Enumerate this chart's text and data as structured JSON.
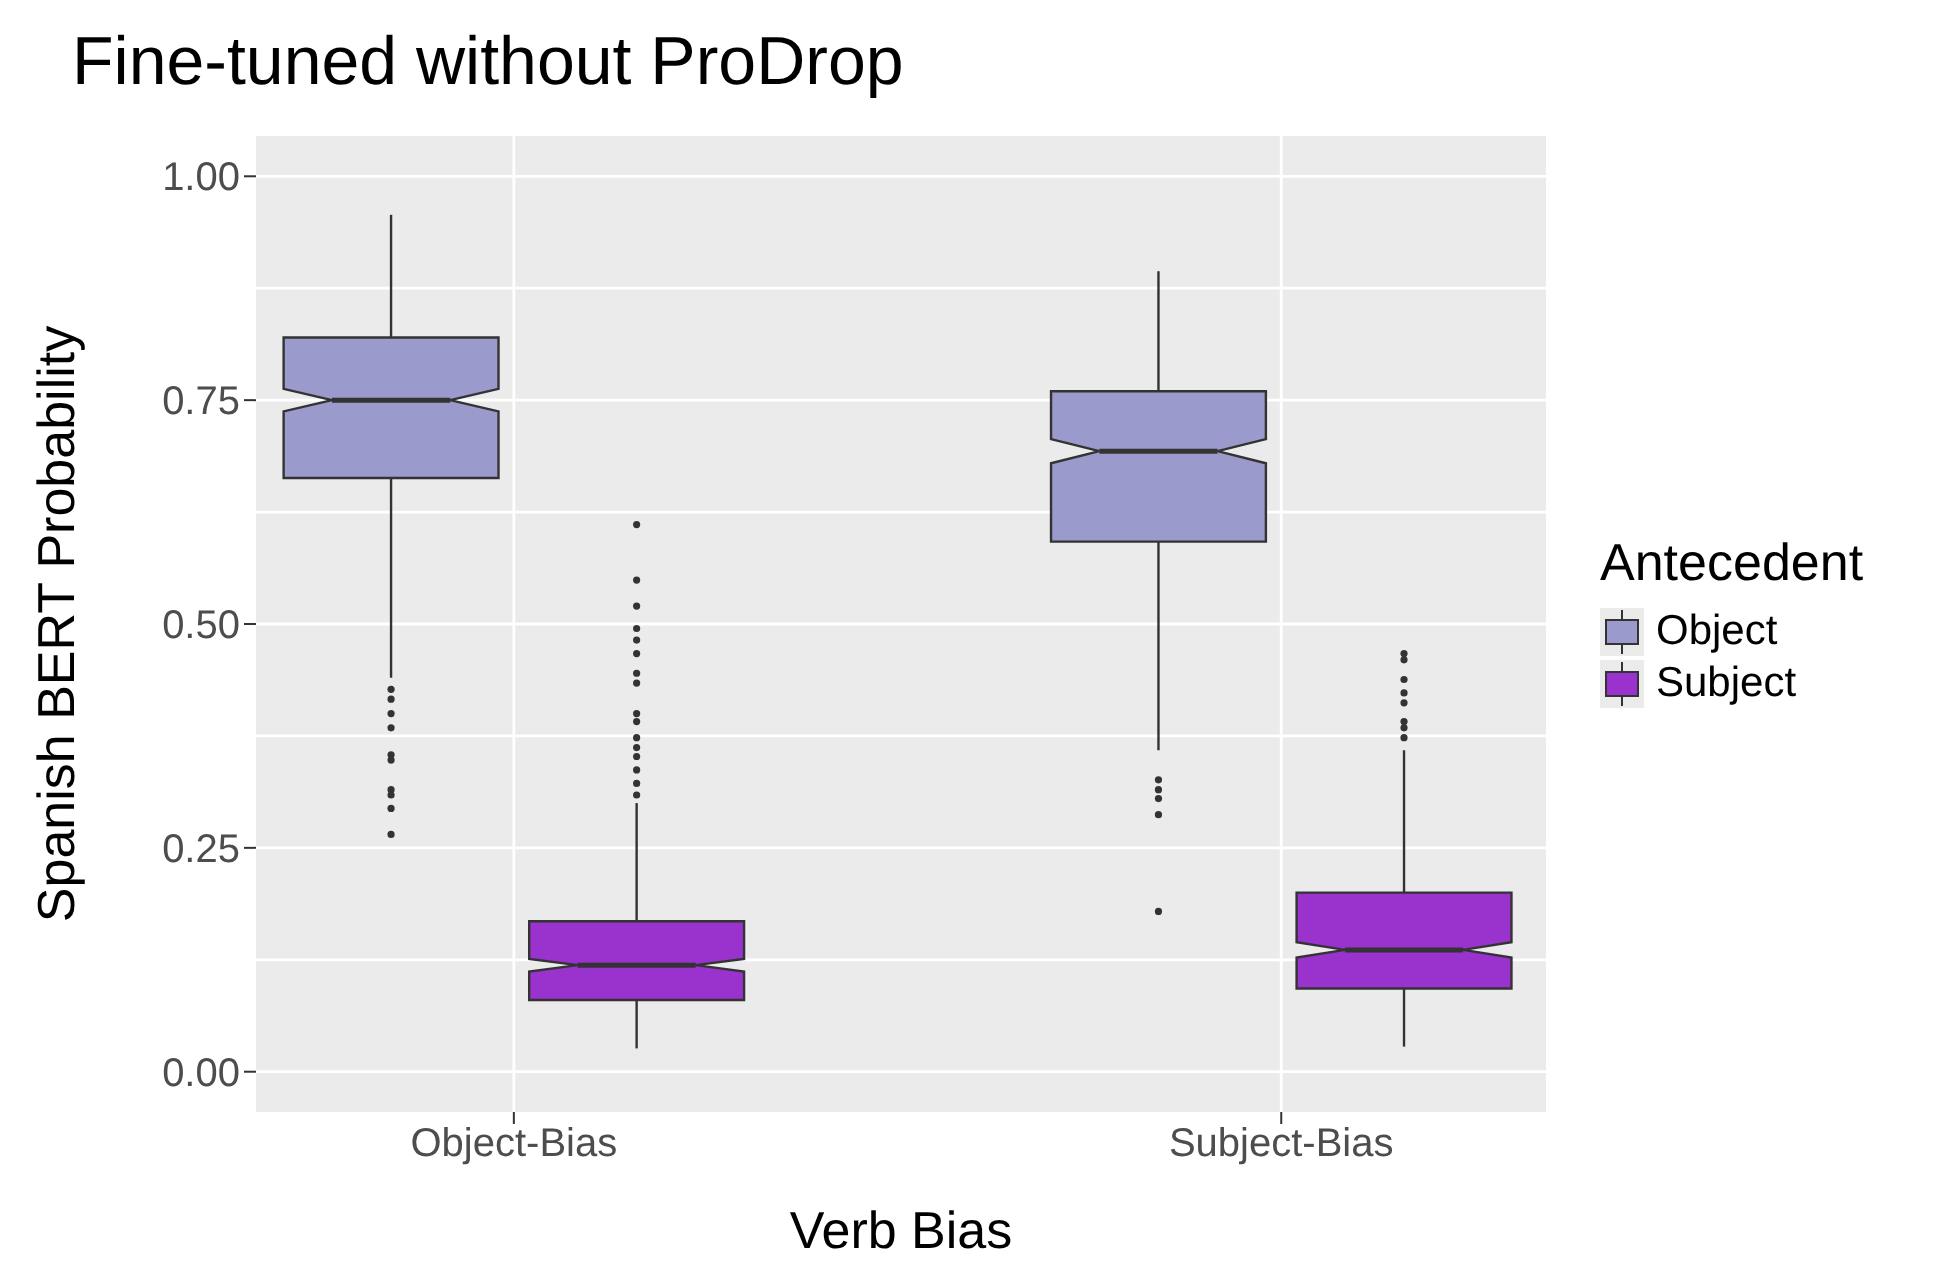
{
  "chart_data": {
    "type": "box",
    "title": "Fine-tuned without ProDrop",
    "xlabel": "Verb Bias",
    "ylabel": "Spanish BERT Probability",
    "legend_title": "Antecedent",
    "legend": "right",
    "grid": true,
    "categories": [
      "Object-Bias",
      "Subject-Bias"
    ],
    "ylim": [
      -0.045,
      1.045
    ],
    "yticks": [
      {
        "value": 0,
        "label": "0.00"
      },
      {
        "value": 0.25,
        "label": "0.25"
      },
      {
        "value": 0.5,
        "label": "0.50"
      },
      {
        "value": 0.75,
        "label": "0.75"
      },
      {
        "value": 1,
        "label": "1.00"
      }
    ],
    "series": [
      {
        "name": "Object",
        "color": "#9a9acd",
        "boxes": [
          {
            "low": 0.44,
            "q1": 0.663,
            "median": 0.75,
            "q3": 0.82,
            "high": 0.957,
            "outliers": [
              0.427,
              0.416,
              0.4,
              0.384,
              0.354,
              0.348,
              0.315,
              0.309,
              0.294,
              0.265
            ]
          },
          {
            "low": 0.359,
            "q1": 0.592,
            "median": 0.693,
            "q3": 0.76,
            "high": 0.894,
            "outliers": [
              0.326,
              0.315,
              0.305,
              0.287,
              0.179
            ]
          }
        ]
      },
      {
        "name": "Subject",
        "color": "#9a32cd",
        "boxes": [
          {
            "low": 0.026,
            "q1": 0.08,
            "median": 0.119,
            "q3": 0.168,
            "high": 0.3,
            "outliers": [
              0.611,
              0.549,
              0.52,
              0.495,
              0.482,
              0.467,
              0.445,
              0.434,
              0.4,
              0.391,
              0.373,
              0.362,
              0.352,
              0.337,
              0.322,
              0.309
            ]
          },
          {
            "low": 0.028,
            "q1": 0.093,
            "median": 0.136,
            "q3": 0.2,
            "high": 0.359,
            "outliers": [
              0.467,
              0.46,
              0.438,
              0.423,
              0.412,
              0.391,
              0.384,
              0.373
            ]
          }
        ]
      }
    ]
  }
}
